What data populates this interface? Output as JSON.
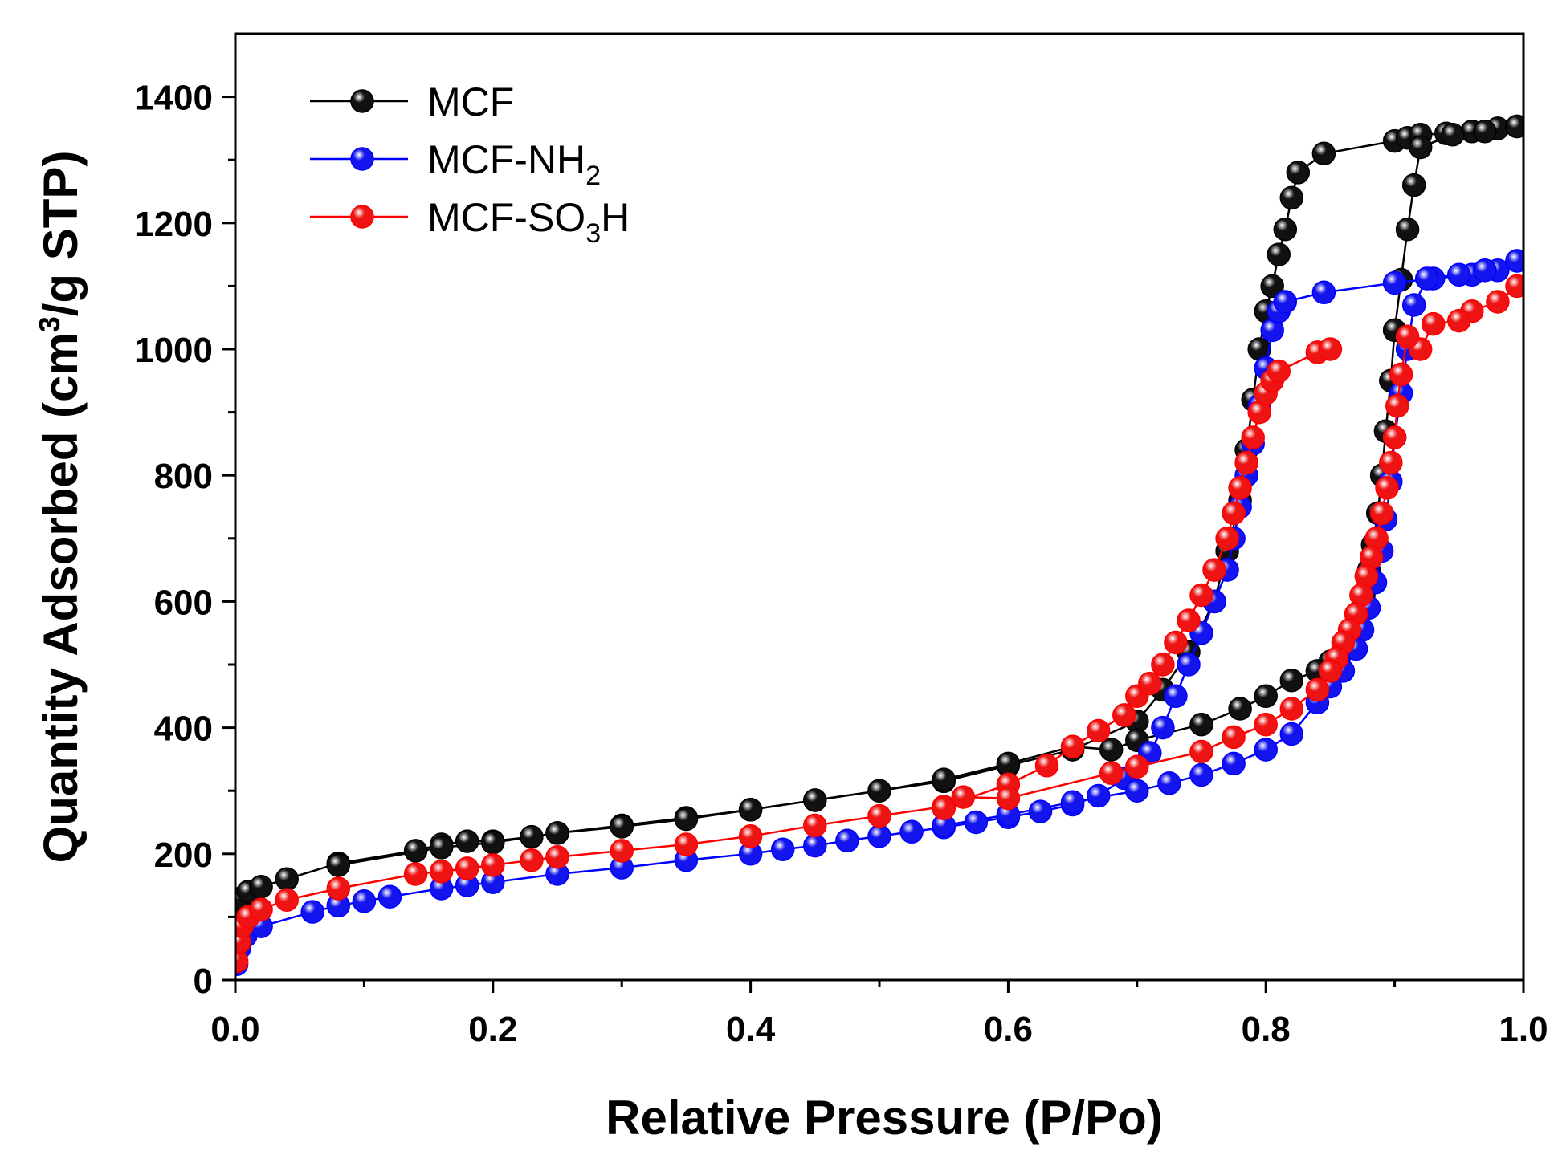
{
  "chart_data": {
    "type": "scatter",
    "xlabel": "Relative Pressure (P/Po)",
    "ylabel": {
      "prefix": "Quantity Adsorbed (cm",
      "sup": "3",
      "suffix": "/g STP)"
    },
    "xlim": [
      0.0,
      1.0
    ],
    "ylim": [
      0,
      1500
    ],
    "x_ticks": [
      0.0,
      0.2,
      0.4,
      0.6,
      0.8,
      1.0
    ],
    "x_tick_labels": [
      "0.0",
      "0.2",
      "0.4",
      "0.6",
      "0.8",
      "1.0"
    ],
    "x_minor_ticks": [
      0.1,
      0.3,
      0.5,
      0.7,
      0.9
    ],
    "y_ticks": [
      0,
      200,
      400,
      600,
      800,
      1000,
      1200,
      1400
    ],
    "y_tick_labels": [
      "0",
      "200",
      "400",
      "600",
      "800",
      "1000",
      "1200",
      "1400"
    ],
    "y_minor_ticks": [
      100,
      300,
      500,
      700,
      900,
      1100,
      1300
    ],
    "grid": false,
    "legend_position": "top-left",
    "series": [
      {
        "name": "MCF",
        "label_parts": [
          {
            "text": "MCF",
            "sub": false
          }
        ],
        "color": "#000000",
        "marker_fill": "#111111",
        "adsorption": {
          "x": [
            0.001,
            0.005,
            0.01,
            0.02,
            0.04,
            0.08,
            0.14,
            0.16,
            0.18,
            0.2,
            0.23,
            0.25,
            0.3,
            0.35,
            0.4,
            0.45,
            0.5,
            0.55,
            0.6,
            0.65,
            0.7,
            0.72,
            0.74,
            0.76,
            0.77,
            0.78,
            0.785,
            0.79,
            0.795,
            0.8,
            0.805,
            0.81,
            0.815,
            0.82,
            0.825,
            0.845,
            0.9,
            0.91,
            0.92,
            0.94,
            0.96,
            0.98,
            0.995
          ],
          "y": [
            115,
            130,
            140,
            148,
            160,
            185,
            205,
            215,
            220,
            220,
            227,
            233,
            245,
            257,
            270,
            285,
            300,
            315,
            340,
            365,
            410,
            460,
            520,
            600,
            680,
            760,
            840,
            920,
            1000,
            1060,
            1100,
            1150,
            1190,
            1240,
            1280,
            1310,
            1330,
            1335,
            1340,
            1342,
            1345,
            1350,
            1353
          ]
        },
        "desorption": {
          "x": [
            0.995,
            0.97,
            0.945,
            0.92,
            0.915,
            0.91,
            0.905,
            0.9,
            0.897,
            0.893,
            0.89,
            0.887,
            0.883,
            0.88,
            0.876,
            0.873,
            0.87,
            0.865,
            0.86,
            0.85,
            0.84,
            0.82,
            0.8,
            0.78,
            0.75,
            0.7,
            0.68,
            0.65,
            0.6,
            0.55,
            0.5,
            0.45,
            0.4,
            0.35,
            0.3,
            0.25,
            0.2,
            0.16,
            0.08
          ],
          "y": [
            1353,
            1345,
            1340,
            1320,
            1260,
            1190,
            1110,
            1030,
            950,
            870,
            800,
            740,
            690,
            650,
            610,
            585,
            565,
            545,
            525,
            505,
            490,
            475,
            450,
            430,
            405,
            380,
            365,
            370,
            343,
            318,
            300,
            285,
            270,
            255,
            243,
            233,
            218,
            210,
            182
          ]
        }
      },
      {
        "name": "MCF-NH2",
        "label_parts": [
          {
            "text": "MCF-NH",
            "sub": false
          },
          {
            "text": "2",
            "sub": true
          }
        ],
        "color": "#0000ff",
        "marker_fill": "#1414ee",
        "adsorption": {
          "x": [
            0.001,
            0.003,
            0.008,
            0.02,
            0.06,
            0.08,
            0.1,
            0.12,
            0.16,
            0.18,
            0.2,
            0.25,
            0.3,
            0.35,
            0.4,
            0.425,
            0.45,
            0.475,
            0.5,
            0.525,
            0.55,
            0.575,
            0.6,
            0.625,
            0.65,
            0.67,
            0.69,
            0.71,
            0.72,
            0.73,
            0.74,
            0.75,
            0.76,
            0.77,
            0.775,
            0.78,
            0.785,
            0.79,
            0.795,
            0.8,
            0.805,
            0.81,
            0.815,
            0.845,
            0.9,
            0.93,
            0.96,
            0.98,
            0.995
          ],
          "y": [
            25,
            50,
            70,
            85,
            108,
            118,
            125,
            132,
            145,
            150,
            155,
            168,
            178,
            190,
            200,
            207,
            213,
            221,
            228,
            235,
            242,
            250,
            258,
            267,
            278,
            292,
            320,
            360,
            400,
            450,
            500,
            550,
            600,
            650,
            700,
            750,
            800,
            850,
            910,
            970,
            1030,
            1060,
            1075,
            1090,
            1105,
            1112,
            1118,
            1125,
            1140
          ]
        },
        "desorption": {
          "x": [
            0.995,
            0.97,
            0.95,
            0.925,
            0.915,
            0.91,
            0.905,
            0.9,
            0.897,
            0.893,
            0.89,
            0.885,
            0.88,
            0.875,
            0.87,
            0.86,
            0.85,
            0.84,
            0.82,
            0.8,
            0.775,
            0.75,
            0.725,
            0.7,
            0.65,
            0.6,
            0.55
          ],
          "y": [
            1140,
            1125,
            1118,
            1112,
            1070,
            1000,
            930,
            860,
            790,
            730,
            680,
            630,
            590,
            555,
            525,
            490,
            465,
            440,
            390,
            365,
            343,
            325,
            312,
            300,
            282,
            262,
            245
          ]
        }
      },
      {
        "name": "MCF-SO3H",
        "label_parts": [
          {
            "text": "MCF-SO",
            "sub": false
          },
          {
            "text": "3",
            "sub": true
          },
          {
            "text": "H",
            "sub": false
          }
        ],
        "color": "#ff0000",
        "marker_fill": "#ee1414",
        "adsorption": {
          "x": [
            0.001,
            0.003,
            0.005,
            0.01,
            0.02,
            0.04,
            0.08,
            0.14,
            0.16,
            0.18,
            0.2,
            0.23,
            0.25,
            0.3,
            0.35,
            0.4,
            0.45,
            0.5,
            0.55,
            0.6,
            0.63,
            0.65,
            0.67,
            0.69,
            0.7,
            0.71,
            0.72,
            0.73,
            0.74,
            0.75,
            0.76,
            0.77,
            0.775,
            0.78,
            0.785,
            0.79,
            0.795,
            0.8,
            0.805,
            0.81,
            0.84,
            0.85
          ],
          "y": [
            30,
            60,
            85,
            100,
            112,
            127,
            145,
            168,
            172,
            177,
            182,
            190,
            195,
            205,
            215,
            228,
            245,
            260,
            275,
            310,
            340,
            370,
            395,
            420,
            450,
            470,
            500,
            535,
            570,
            610,
            650,
            700,
            740,
            780,
            820,
            860,
            900,
            930,
            950,
            965,
            995,
            1000
          ]
        },
        "desorption": {
          "x": [
            0.995,
            0.98,
            0.96,
            0.95,
            0.93,
            0.92,
            0.91,
            0.905,
            0.902,
            0.9,
            0.897,
            0.894,
            0.89,
            0.886,
            0.882,
            0.878,
            0.874,
            0.87,
            0.865,
            0.86,
            0.855,
            0.85,
            0.84,
            0.82,
            0.8,
            0.775,
            0.75,
            0.7,
            0.68,
            0.6,
            0.565,
            0.55
          ],
          "y": [
            1100,
            1075,
            1060,
            1045,
            1040,
            1000,
            1020,
            960,
            910,
            860,
            820,
            780,
            740,
            700,
            670,
            640,
            610,
            580,
            555,
            535,
            510,
            490,
            460,
            430,
            405,
            385,
            362,
            338,
            328,
            288,
            290,
            272
          ]
        }
      }
    ]
  }
}
